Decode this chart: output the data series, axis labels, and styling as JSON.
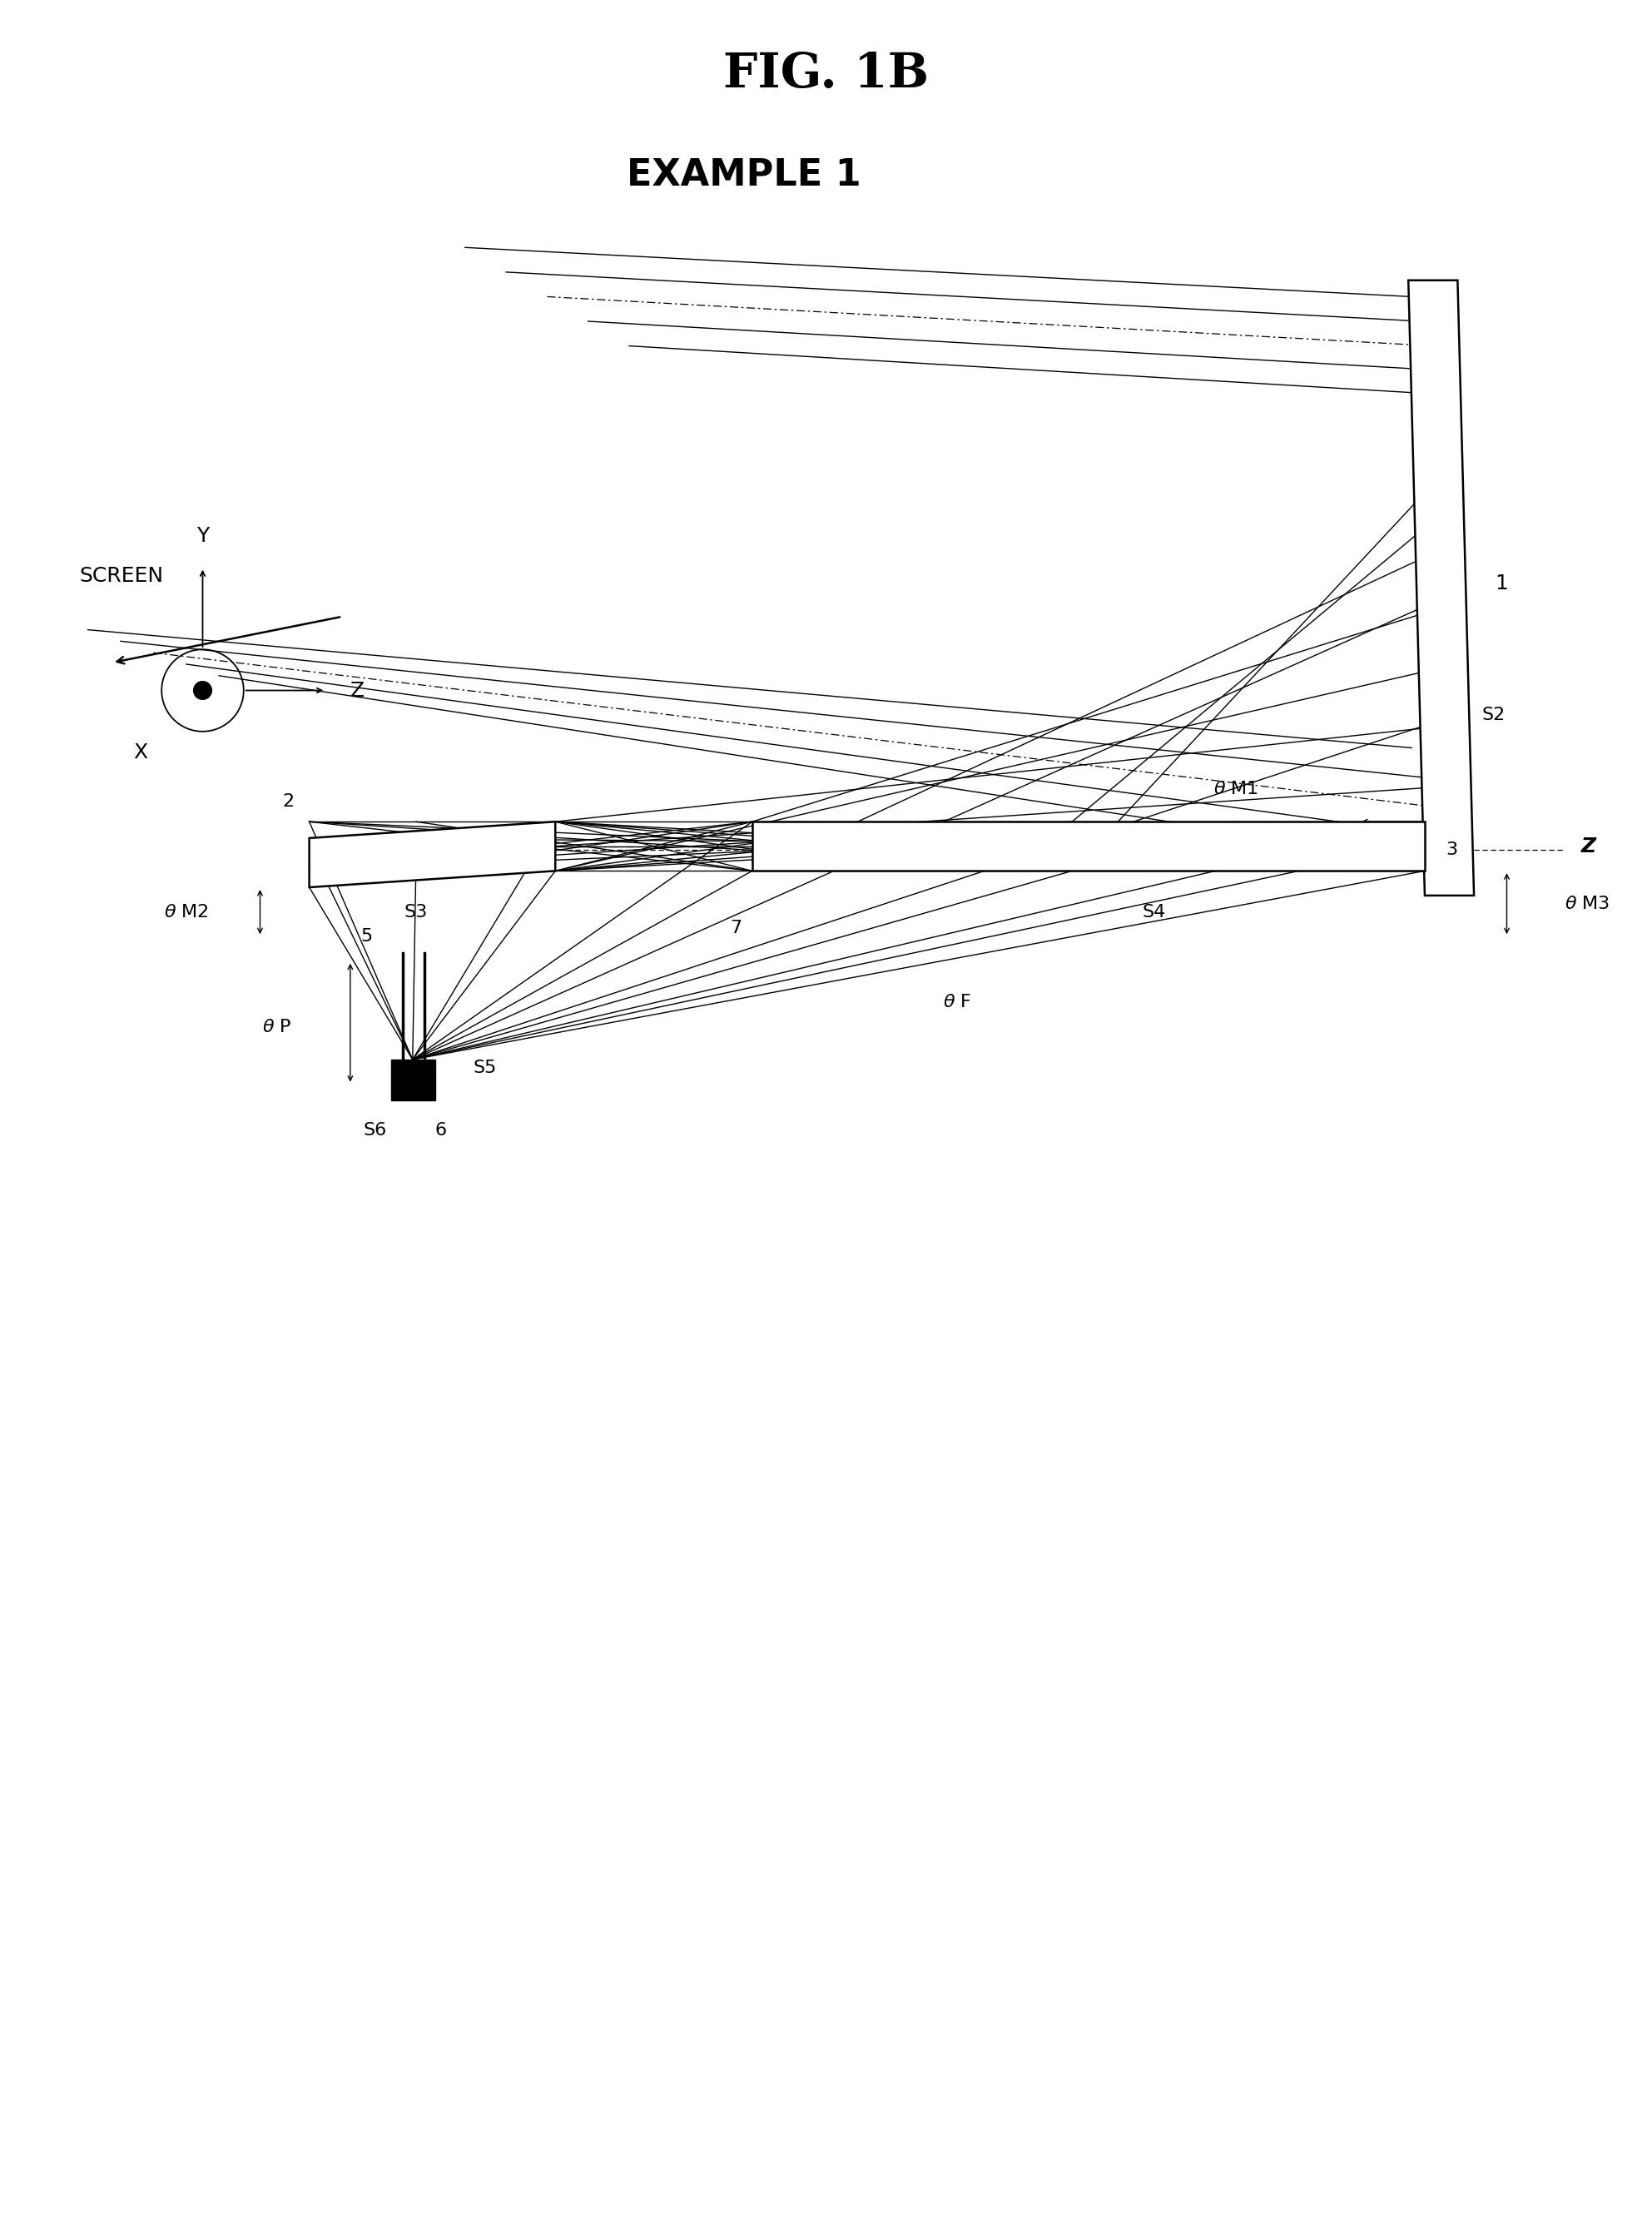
{
  "title": "FIG. 1B",
  "subtitle": "EXAMPLE 1",
  "bg_color": "#ffffff",
  "title_fontsize": 42,
  "subtitle_fontsize": 32,
  "label_fontsize": 18,
  "small_fontsize": 16,
  "fig_width": 19.85,
  "fig_height": 26.84,
  "xlim": [
    0,
    10
  ],
  "ylim": [
    0,
    13.5
  ]
}
